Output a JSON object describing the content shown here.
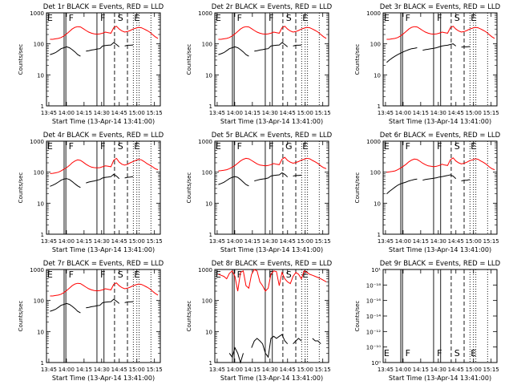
{
  "colors": {
    "events": "#000000",
    "lld": "#ff0000"
  },
  "chart_data": [
    {
      "type": "line",
      "title": "Det 1r BLACK = Events, RED = LLD",
      "ylabel": "Counts/sec",
      "xlabel": "Start Time (13-Apr-14 13:41:00)",
      "yscale": "log",
      "ylim": [
        1,
        1000
      ],
      "yticks": [
        "1",
        "10",
        "100",
        "1000"
      ],
      "xticks": [
        "13:45",
        "14:00",
        "14:15",
        "14:30",
        "14:45",
        "15:00",
        "15:15"
      ],
      "markers": [
        "E",
        "F",
        "F",
        "S",
        "E"
      ],
      "series": [
        {
          "values": [
            140,
            140,
            145,
            150,
            160,
            180,
            210,
            250,
            300,
            340,
            360,
            350,
            310,
            270,
            240,
            220,
            210,
            205,
            210,
            220,
            240,
            230,
            220,
            330,
            370,
            300,
            260,
            240,
            250,
            270,
            300,
            320,
            340,
            330,
            300,
            270,
            240,
            200,
            170,
            150
          ]
        },
        {
          "values": [
            45,
            48,
            52,
            60,
            70,
            75,
            80,
            75,
            65,
            55,
            45,
            40,
            null,
            58,
            60,
            63,
            65,
            68,
            70,
            85,
            88,
            90,
            92,
            110,
            95,
            80,
            null,
            85,
            90,
            90,
            92,
            null,
            null,
            null,
            null,
            null,
            null,
            null,
            null,
            null
          ]
        }
      ]
    },
    {
      "type": "line",
      "title": "Det 2r BLACK = Events, RED = LLD",
      "ylabel": "Counts/sec",
      "xlabel": "Start Time (13-Apr-14 13:41:00)",
      "yscale": "log",
      "ylim": [
        1,
        1000
      ],
      "yticks": [
        "1",
        "10",
        "100",
        "1000"
      ],
      "xticks": [
        "13:45",
        "14:00",
        "14:15",
        "14:30",
        "14:45",
        "15:00",
        "15:15"
      ],
      "markers": [
        "E",
        "F",
        "F",
        "S",
        "E"
      ],
      "series": [
        {
          "values": [
            140,
            140,
            145,
            150,
            160,
            180,
            210,
            250,
            300,
            340,
            360,
            350,
            310,
            270,
            240,
            220,
            210,
            205,
            210,
            220,
            240,
            230,
            220,
            330,
            370,
            300,
            260,
            240,
            250,
            270,
            300,
            320,
            340,
            330,
            300,
            270,
            240,
            200,
            170,
            150
          ]
        },
        {
          "values": [
            45,
            48,
            52,
            60,
            70,
            75,
            80,
            75,
            65,
            55,
            45,
            40,
            null,
            58,
            60,
            63,
            65,
            68,
            70,
            85,
            88,
            90,
            92,
            110,
            95,
            80,
            null,
            85,
            90,
            90,
            92,
            null,
            null,
            null,
            null,
            null,
            null,
            null,
            null,
            null
          ]
        }
      ]
    },
    {
      "type": "line",
      "title": "Det 3r BLACK = Events, RED = LLD",
      "ylabel": "Counts/sec",
      "xlabel": "Start Time (13-Apr-14 13:41:00)",
      "yscale": "log",
      "ylim": [
        1,
        1000
      ],
      "yticks": [
        "1",
        "10",
        "100",
        "1000"
      ],
      "xticks": [
        "13:45",
        "14:00",
        "14:15",
        "14:30",
        "14:45",
        "15:00",
        "15:15"
      ],
      "markers": [
        "E",
        "F",
        "F",
        "S",
        "E"
      ],
      "series": [
        {
          "values": [
            140,
            140,
            145,
            150,
            160,
            180,
            210,
            250,
            300,
            340,
            360,
            350,
            310,
            270,
            240,
            220,
            210,
            205,
            210,
            220,
            240,
            230,
            220,
            330,
            370,
            300,
            260,
            240,
            250,
            270,
            300,
            320,
            340,
            330,
            300,
            270,
            240,
            200,
            170,
            150
          ]
        },
        {
          "values": [
            25,
            30,
            35,
            40,
            45,
            50,
            55,
            60,
            65,
            70,
            72,
            75,
            null,
            62,
            65,
            67,
            70,
            72,
            75,
            80,
            85,
            88,
            90,
            95,
            100,
            85,
            null,
            78,
            80,
            80,
            82,
            null,
            null,
            null,
            null,
            null,
            null,
            null,
            null,
            null
          ]
        }
      ]
    },
    {
      "type": "line",
      "title": "Det 4r BLACK = Events, RED = LLD",
      "ylabel": "Counts/sec",
      "xlabel": "Start Time (13-Apr-14 13:41:00)",
      "yscale": "log",
      "ylim": [
        1,
        1000
      ],
      "yticks": [
        "1",
        "10",
        "100",
        "1000"
      ],
      "xticks": [
        "13:45",
        "14:00",
        "14:15",
        "14:30",
        "14:45",
        "15:00",
        "15:15"
      ],
      "markers": [
        "E",
        "F",
        "F",
        "S",
        "E"
      ],
      "series": [
        {
          "values": [
            90,
            92,
            95,
            100,
            110,
            125,
            140,
            165,
            200,
            230,
            250,
            240,
            210,
            180,
            160,
            145,
            140,
            138,
            140,
            150,
            160,
            155,
            150,
            240,
            280,
            210,
            180,
            170,
            180,
            200,
            220,
            240,
            260,
            250,
            220,
            190,
            170,
            150,
            130,
            120
          ]
        },
        {
          "values": [
            35,
            38,
            42,
            48,
            55,
            60,
            62,
            58,
            50,
            42,
            36,
            32,
            null,
            45,
            48,
            50,
            52,
            55,
            58,
            65,
            68,
            70,
            72,
            85,
            75,
            62,
            null,
            65,
            68,
            70,
            72,
            null,
            null,
            null,
            null,
            null,
            null,
            null,
            null,
            null
          ]
        }
      ]
    },
    {
      "type": "line",
      "title": "Det 5r BLACK = Events, RED = LLD",
      "ylabel": "Counts/sec",
      "xlabel": "Start Time (13-Apr-14 13:41:00)",
      "yscale": "log",
      "ylim": [
        1,
        1000
      ],
      "yticks": [
        "1",
        "10",
        "100",
        "1000"
      ],
      "xticks": [
        "13:45",
        "14:00",
        "14:15",
        "14:30",
        "14:45",
        "15:00",
        "15:15"
      ],
      "markers": [
        "E",
        "F",
        "F",
        "G",
        "E"
      ],
      "series": [
        {
          "values": [
            110,
            112,
            115,
            120,
            130,
            145,
            165,
            195,
            230,
            260,
            280,
            270,
            240,
            210,
            185,
            170,
            165,
            160,
            165,
            175,
            190,
            180,
            175,
            260,
            300,
            240,
            210,
            195,
            205,
            220,
            245,
            260,
            280,
            270,
            240,
            215,
            190,
            160,
            140,
            130
          ]
        },
        {
          "values": [
            40,
            43,
            47,
            54,
            62,
            68,
            72,
            68,
            58,
            48,
            40,
            36,
            null,
            52,
            55,
            58,
            60,
            62,
            65,
            75,
            78,
            80,
            82,
            95,
            85,
            70,
            null,
            75,
            78,
            78,
            80,
            null,
            null,
            null,
            null,
            null,
            null,
            null,
            null,
            null
          ]
        }
      ]
    },
    {
      "type": "line",
      "title": "Det 6r BLACK = Events, RED = LLD",
      "ylabel": "Counts/sec",
      "xlabel": "Start Time (13-Apr-14 13:41:00)",
      "yscale": "log",
      "ylim": [
        1,
        1000
      ],
      "yticks": [
        "1",
        "10",
        "100",
        "1000"
      ],
      "xticks": [
        "13:45",
        "14:00",
        "14:15",
        "14:30",
        "14:45",
        "15:00",
        "15:15"
      ],
      "markers": [
        "E",
        "F",
        "F",
        "S",
        "E"
      ],
      "series": [
        {
          "values": [
            100,
            102,
            105,
            110,
            120,
            135,
            155,
            180,
            215,
            245,
            265,
            255,
            225,
            195,
            175,
            160,
            155,
            150,
            155,
            165,
            180,
            170,
            165,
            250,
            290,
            230,
            200,
            185,
            195,
            210,
            235,
            250,
            270,
            260,
            230,
            205,
            180,
            150,
            130,
            120
          ]
        },
        {
          "values": [
            20,
            24,
            28,
            33,
            38,
            42,
            45,
            48,
            52,
            55,
            58,
            60,
            null,
            55,
            58,
            60,
            62,
            64,
            66,
            70,
            72,
            75,
            78,
            82,
            75,
            62,
            null,
            52,
            55,
            55,
            58,
            null,
            null,
            null,
            null,
            null,
            null,
            null,
            null,
            null
          ]
        }
      ]
    },
    {
      "type": "line",
      "title": "Det 7r BLACK = Events, RED = LLD",
      "ylabel": "Counts/sec",
      "xlabel": "Start Time (13-Apr-14 13:41:00)",
      "yscale": "log",
      "ylim": [
        1,
        1000
      ],
      "yticks": [
        "1",
        "10",
        "100",
        "1000"
      ],
      "xticks": [
        "13:45",
        "14:00",
        "14:15",
        "14:30",
        "14:45",
        "15:00",
        "15:15"
      ],
      "markers": [
        "E",
        "F",
        "F",
        "S",
        "E"
      ],
      "series": [
        {
          "values": [
            140,
            140,
            145,
            150,
            160,
            180,
            210,
            250,
            300,
            340,
            360,
            350,
            310,
            270,
            240,
            220,
            210,
            205,
            210,
            220,
            240,
            230,
            220,
            330,
            370,
            300,
            260,
            240,
            250,
            270,
            300,
            320,
            340,
            330,
            300,
            270,
            240,
            200,
            170,
            150
          ]
        },
        {
          "values": [
            45,
            48,
            52,
            60,
            70,
            75,
            80,
            75,
            65,
            55,
            45,
            40,
            null,
            58,
            60,
            63,
            65,
            68,
            70,
            85,
            88,
            90,
            92,
            110,
            95,
            80,
            null,
            85,
            90,
            90,
            92,
            null,
            null,
            null,
            null,
            null,
            null,
            null,
            null,
            null
          ]
        }
      ]
    },
    {
      "type": "line",
      "title": "Det 8r BLACK = Events, RED = LLD",
      "ylabel": "Counts/sec",
      "xlabel": "Start Time (13-Apr-14 13:41:00)",
      "yscale": "log",
      "ylim": [
        1,
        1000
      ],
      "yticks": [
        "1",
        "10",
        "100",
        "1000"
      ],
      "xticks": [
        "13:45",
        "14:00",
        "14:15",
        "14:30",
        "14:45",
        "15:00",
        "15:15"
      ],
      "markers": [
        "E",
        "F",
        "F",
        "S",
        "E"
      ],
      "series": [
        {
          "values": [
            700,
            650,
            600,
            500,
            750,
            900,
            600,
            200,
            800,
            900,
            300,
            250,
            700,
            1000,
            900,
            400,
            300,
            200,
            250,
            700,
            900,
            850,
            300,
            800,
            500,
            400,
            350,
            600,
            800,
            700,
            500,
            900,
            800,
            700,
            650,
            600,
            550,
            500,
            450,
            400
          ]
        },
        {
          "values": [
            null,
            null,
            null,
            null,
            2,
            1.5,
            3,
            2,
            1,
            2,
            null,
            null,
            3,
            5,
            6,
            5,
            4,
            2,
            1.5,
            6,
            7,
            6,
            7,
            8,
            5,
            4,
            null,
            4,
            5,
            6,
            5,
            null,
            null,
            null,
            6,
            5,
            5,
            4,
            null,
            null
          ]
        }
      ]
    },
    {
      "type": "line",
      "title": "Det 9r BLACK = Events, RED = LLD",
      "ylabel": "Counts/sec",
      "xlabel": "Start Time (13-Apr-14 13:41:00)",
      "yscale": "log",
      "ylim": [
        1,
        10
      ],
      "yticks": [
        "10⁰",
        "10⁻¹⁰",
        "10⁻¹²",
        "10⁻¹⁴",
        "10⁻¹⁶",
        "10⁻¹⁸",
        "10¹"
      ],
      "xticks": [
        "13:45",
        "14:00",
        "14:15",
        "14:30",
        "14:45",
        "15:00",
        "15:15"
      ],
      "markers": [
        "E",
        "F",
        "F",
        "S",
        "E"
      ],
      "series": []
    }
  ]
}
